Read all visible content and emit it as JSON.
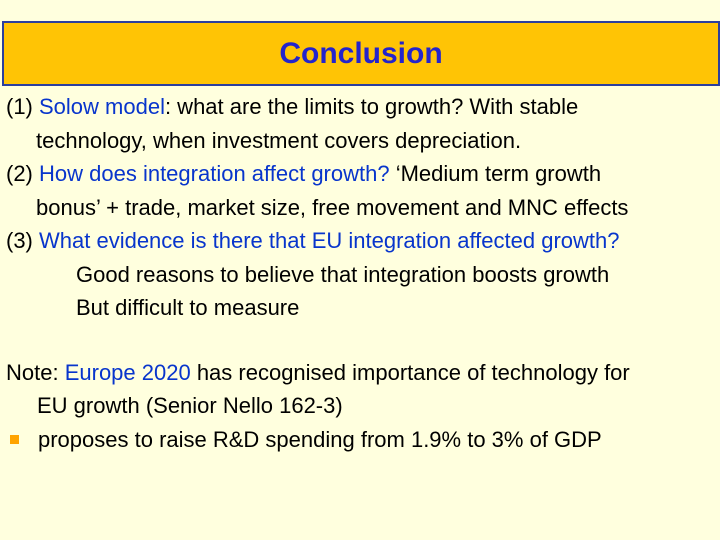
{
  "slide": {
    "title": "Conclusion",
    "colors": {
      "background": "#FFFFDE",
      "title_bar_fill": "#FFC405",
      "title_bar_border": "#2B3F9E",
      "title_text": "#2424CC",
      "body_text": "#000000",
      "link_text": "#0835CC",
      "bullet": "#FFA300"
    },
    "body": [
      {
        "style": "num",
        "runs": [
          {
            "t": "(1) "
          },
          {
            "t": "Solow model",
            "link": true
          },
          {
            "t": ": what are the limits to growth? With stable"
          }
        ]
      },
      {
        "style": "cont",
        "runs": [
          {
            "t": "technology, when investment covers depreciation."
          }
        ]
      },
      {
        "style": "num",
        "runs": [
          {
            "t": "(2) "
          },
          {
            "t": "How does integration affect growth?",
            "link": true
          },
          {
            "t": " ‘Medium term growth"
          }
        ]
      },
      {
        "style": "cont",
        "runs": [
          {
            "t": "bonus’ + trade, market size, free movement and MNC effects"
          }
        ]
      },
      {
        "style": "num",
        "runs": [
          {
            "t": "(3) "
          },
          {
            "t": "What evidence is there that EU integration affected growth?",
            "link": true
          }
        ]
      },
      {
        "style": "sub",
        "runs": [
          {
            "t": "Good reasons to believe that integration boosts growth"
          }
        ]
      },
      {
        "style": "sub",
        "runs": [
          {
            "t": "But difficult to measure"
          }
        ]
      },
      {
        "style": "note",
        "gap_before": true,
        "runs": [
          {
            "t": "Note: "
          },
          {
            "t": "Europe 2020",
            "link": true
          },
          {
            "t": " has recognised importance of technology for"
          }
        ]
      },
      {
        "style": "notecont",
        "runs": [
          {
            "t": "EU growth (Senior Nello 162-3)"
          }
        ]
      },
      {
        "style": "bullet",
        "runs": [
          {
            "t": "proposes to raise R&D spending from 1.9% to 3% of GDP"
          }
        ]
      }
    ]
  }
}
